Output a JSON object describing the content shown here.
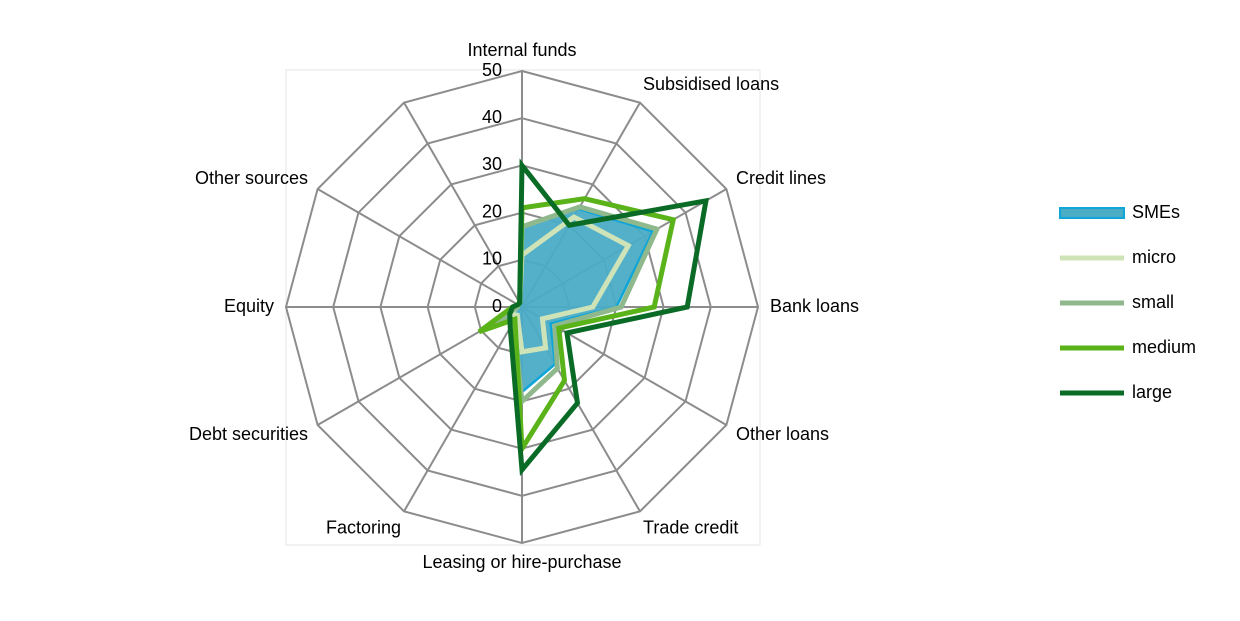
{
  "chart_data": {
    "type": "radar",
    "categories": [
      "Internal funds",
      "Subsidised loans",
      "Credit lines",
      "Bank loans",
      "Other loans",
      "Trade credit",
      "Leasing or hire-purchase",
      "Factoring",
      "Debt securities",
      "Equity",
      "Other sources",
      null
    ],
    "rlim": [
      0,
      50
    ],
    "rticks": [
      0,
      10,
      20,
      30,
      40,
      50
    ],
    "grid": true,
    "legend": "right",
    "series": [
      {
        "name": "SMEs",
        "color": "#4bacc6",
        "fill": true,
        "values": [
          17,
          24,
          32,
          20,
          7,
          14,
          18,
          3,
          5,
          1,
          1,
          1
        ]
      },
      {
        "name": "micro",
        "color": "#cfe3b8",
        "values": [
          11,
          22,
          26,
          15,
          5,
          10,
          9.5,
          2,
          3,
          1,
          1,
          1
        ]
      },
      {
        "name": "small",
        "color": "#8fb98c",
        "values": [
          17,
          24.5,
          33,
          21,
          8,
          15,
          20,
          3.5,
          5.5,
          1,
          1,
          1
        ]
      },
      {
        "name": "medium",
        "color": "#5bb31a",
        "values": [
          21,
          26.5,
          37,
          28,
          9,
          18,
          30,
          3,
          10.5,
          2,
          1,
          1
        ]
      },
      {
        "name": "large",
        "color": "#0a6b26",
        "values": [
          30,
          20,
          45,
          35,
          11,
          23.5,
          34.5,
          5,
          3,
          2,
          1,
          1
        ]
      }
    ]
  }
}
